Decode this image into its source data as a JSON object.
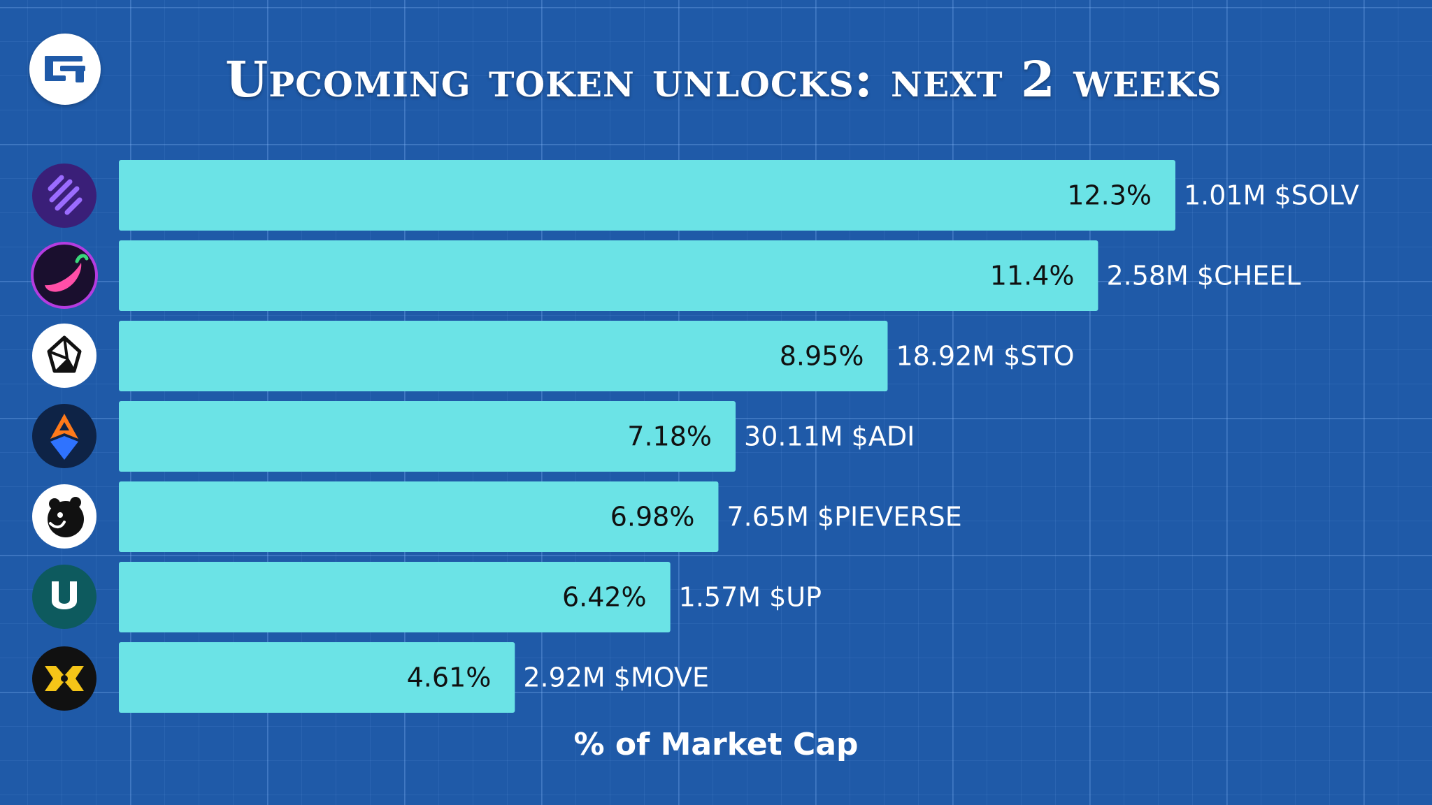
{
  "title": "Upcoming token unlocks: next 2 weeks",
  "brand": {
    "logo_icon": "brand-circle-logo-icon"
  },
  "colors": {
    "background": "#1f5aa8",
    "bar": "#6be3e6",
    "label": "#ffffff",
    "value_text": "#101010"
  },
  "chart_data": {
    "type": "bar",
    "orientation": "horizontal",
    "xlabel": "% of Market Cap",
    "ylabel": "",
    "xlim": [
      0,
      12.3
    ],
    "grid": false,
    "categories": [
      "$SOLV",
      "$CHEEL",
      "$STO",
      "$ADI",
      "$PIEVERSE",
      "$UP",
      "$MOVE"
    ],
    "values": [
      12.3,
      11.4,
      8.95,
      7.18,
      6.98,
      6.42,
      4.61
    ],
    "value_labels": [
      "12.3%",
      "11.4%",
      "8.95%",
      "7.18%",
      "6.98%",
      "6.42%",
      "4.61%"
    ],
    "bar_labels": [
      "1.01M $SOLV",
      "2.58M $CHEEL",
      "18.92M $STO",
      "30.11M $ADI",
      "7.65M $PIEVERSE",
      "1.57M $UP",
      "2.92M $MOVE"
    ],
    "icons": [
      "solv-token-icon",
      "cheel-token-icon",
      "sto-token-icon",
      "adi-token-icon",
      "pieverse-token-icon",
      "up-token-icon",
      "move-token-icon"
    ]
  }
}
